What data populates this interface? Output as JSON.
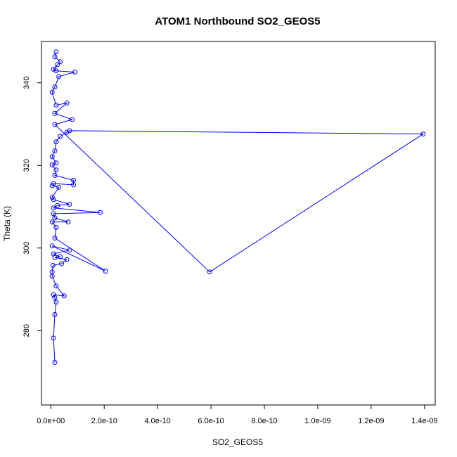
{
  "chart_data": {
    "type": "line",
    "title": "ATOM1 Northbound SO2_GEOS5",
    "xlabel": "SO2_GEOS5",
    "ylabel": "Theta (K)",
    "xlim": [
      -3.5e-11,
      1.44e-09
    ],
    "ylim": [
      262.0,
      350.0
    ],
    "x_ticks": [
      0,
      2e-10,
      4e-10,
      6e-10,
      8e-10,
      1e-09,
      1.2e-09,
      1.4e-09
    ],
    "x_tick_labels": [
      "0.0e+00",
      "2.0e-10",
      "4.0e-10",
      "6.0e-10",
      "8.0e-10",
      "1.0e-09",
      "1.2e-09",
      "1.4e-09"
    ],
    "y_ticks": [
      280,
      300,
      320,
      340
    ],
    "y_tick_labels": [
      "280",
      "300",
      "320",
      "340"
    ],
    "series": [
      {
        "color": "#0000ff",
        "marker": "open-circle",
        "points": [
          [
            1.5e-11,
            272.3
          ],
          [
            1e-11,
            278.2
          ],
          [
            1.5e-11,
            283.9
          ],
          [
            2e-11,
            286.9
          ],
          [
            1.5e-11,
            288.0
          ],
          [
            1e-11,
            288.7
          ],
          [
            5e-11,
            288.4
          ],
          [
            2e-11,
            290.8
          ],
          [
            5e-12,
            293.2
          ],
          [
            5e-12,
            294.2
          ],
          [
            8e-12,
            295.8
          ],
          [
            4e-11,
            296.2
          ],
          [
            6e-11,
            297.2
          ],
          [
            1.5e-11,
            297.7
          ],
          [
            3.5e-11,
            297.9
          ],
          [
            1e-11,
            298.6
          ],
          [
            7e-11,
            299.5
          ],
          [
            5e-12,
            300.5
          ],
          [
            2.05e-10,
            294.4
          ],
          [
            1.5e-11,
            302.4
          ],
          [
            2e-11,
            305.0
          ],
          [
            5e-12,
            306.3
          ],
          [
            6.5e-11,
            306.3
          ],
          [
            1.5e-11,
            307.3
          ],
          [
            1e-11,
            308.3
          ],
          [
            1.85e-10,
            308.6
          ],
          [
            1e-11,
            309.7
          ],
          [
            2.5e-11,
            310.3
          ],
          [
            7e-11,
            310.6
          ],
          [
            1e-11,
            311.7
          ],
          [
            5e-12,
            312.3
          ],
          [
            3e-11,
            314.7
          ],
          [
            5e-12,
            315.1
          ],
          [
            1e-11,
            315.6
          ],
          [
            8.5e-11,
            315.3
          ],
          [
            8.5e-11,
            316.4
          ],
          [
            1.5e-11,
            317.6
          ],
          [
            2e-11,
            318.9
          ],
          [
            5e-12,
            320.1
          ],
          [
            2e-11,
            320.6
          ],
          [
            5e-12,
            322.1
          ],
          [
            1.5e-11,
            323.5
          ],
          [
            2e-11,
            325.7
          ],
          [
            3.5e-11,
            327.0
          ],
          [
            6e-11,
            328.0
          ],
          [
            7e-11,
            328.4
          ],
          [
            1.395e-09,
            327.6
          ],
          [
            5.95e-10,
            294.2
          ],
          [
            1.5e-11,
            329.9
          ],
          [
            8e-11,
            331.1
          ],
          [
            1.5e-11,
            332.6
          ],
          [
            6e-11,
            335.1
          ],
          [
            2e-11,
            334.6
          ],
          [
            5e-12,
            337.7
          ],
          [
            1.5e-11,
            339.0
          ],
          [
            3e-11,
            341.5
          ],
          [
            9e-11,
            342.6
          ],
          [
            2e-11,
            342.9
          ],
          [
            1e-11,
            343.3
          ],
          [
            2.5e-11,
            344.4
          ],
          [
            3.5e-11,
            345.1
          ],
          [
            1.5e-11,
            346.3
          ],
          [
            2e-11,
            347.5
          ]
        ]
      }
    ]
  }
}
